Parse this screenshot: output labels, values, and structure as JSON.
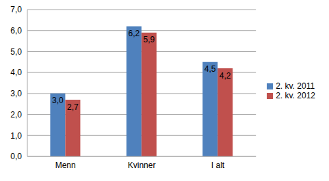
{
  "chart_data": {
    "type": "bar",
    "categories": [
      "Menn",
      "Kvinner",
      "I alt"
    ],
    "series": [
      {
        "name": "2. kv. 2011",
        "color": "#4f81bd",
        "values": [
          3.0,
          6.2,
          4.5
        ],
        "value_labels": [
          "3,0",
          "6,2",
          "4,5"
        ]
      },
      {
        "name": "2. kv. 2012",
        "color": "#c0504d",
        "values": [
          2.7,
          5.9,
          4.2
        ],
        "value_labels": [
          "2,7",
          "5,9",
          "4,2"
        ]
      }
    ],
    "ylim": [
      0,
      7
    ],
    "yticks": [
      {
        "value": 0,
        "label": "0,0"
      },
      {
        "value": 1,
        "label": "1,0"
      },
      {
        "value": 2,
        "label": "2,0"
      },
      {
        "value": 3,
        "label": "3,0"
      },
      {
        "value": 4,
        "label": "4,0"
      },
      {
        "value": 5,
        "label": "5,0"
      },
      {
        "value": 6,
        "label": "6,0"
      },
      {
        "value": 7,
        "label": "7,0"
      }
    ],
    "grid": true,
    "legend": "right",
    "data_labels": true
  }
}
